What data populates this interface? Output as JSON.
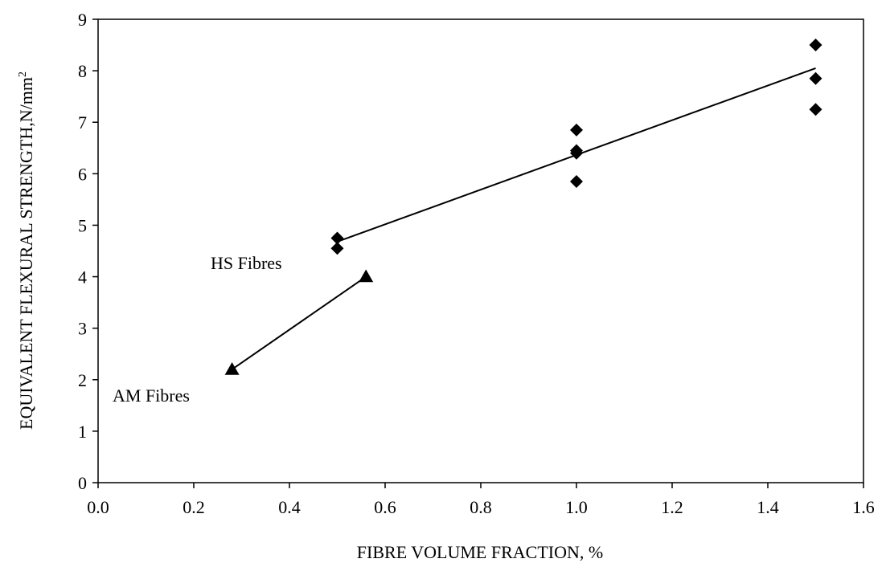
{
  "chart_data": {
    "type": "scatter",
    "title": "",
    "xlabel": "FIBRE VOLUME FRACTION, %",
    "ylabel": "EQUIVALENT FLEXURAL STRENGTH,",
    "ylabel_unit": "N/mm",
    "ylabel_unit_sup": "2",
    "xlim": [
      0,
      1.6
    ],
    "ylim": [
      0,
      9
    ],
    "xticks": [
      "0.0",
      "0.2",
      "0.4",
      "0.6",
      "0.8",
      "1.0",
      "1.2",
      "1.4",
      "1.6"
    ],
    "yticks": [
      "0",
      "1",
      "2",
      "3",
      "4",
      "5",
      "6",
      "7",
      "8",
      "9"
    ],
    "grid": false,
    "series": [
      {
        "name": "HS Fibres",
        "marker": "diamond",
        "color": "#000000",
        "points": [
          {
            "x": 0.5,
            "y": 4.75
          },
          {
            "x": 0.5,
            "y": 4.55
          },
          {
            "x": 1.0,
            "y": 6.85
          },
          {
            "x": 1.0,
            "y": 6.45
          },
          {
            "x": 1.0,
            "y": 6.4
          },
          {
            "x": 1.0,
            "y": 5.85
          },
          {
            "x": 1.5,
            "y": 8.5
          },
          {
            "x": 1.5,
            "y": 7.85
          },
          {
            "x": 1.5,
            "y": 7.25
          }
        ],
        "trendline": [
          {
            "x": 0.5,
            "y": 4.68
          },
          {
            "x": 1.5,
            "y": 8.05
          }
        ]
      },
      {
        "name": "AM Fibres",
        "marker": "triangle",
        "color": "#000000",
        "points": [
          {
            "x": 0.28,
            "y": 2.2
          },
          {
            "x": 0.56,
            "y": 4.0
          }
        ],
        "trendline": [
          {
            "x": 0.28,
            "y": 2.2
          },
          {
            "x": 0.56,
            "y": 4.0
          }
        ]
      }
    ]
  }
}
